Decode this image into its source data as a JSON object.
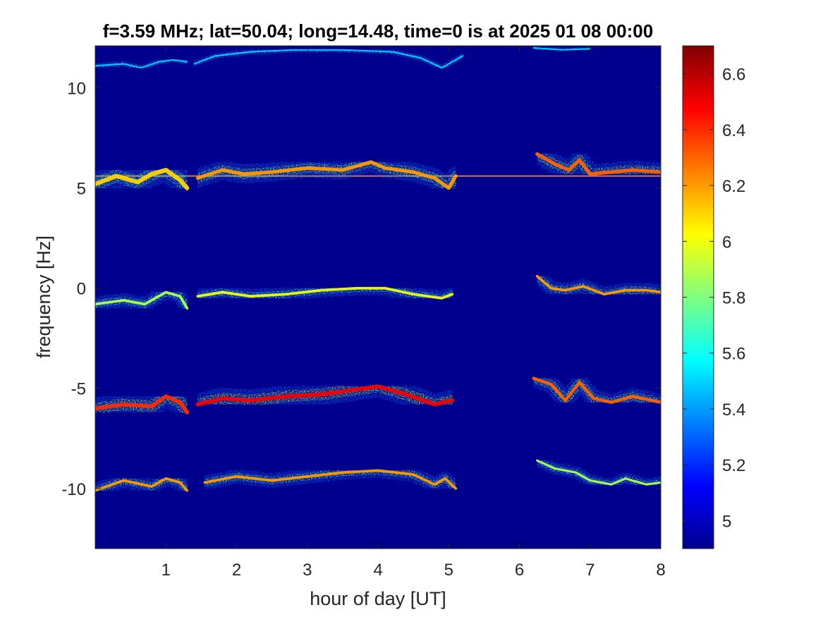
{
  "chart_data": {
    "type": "heatmap",
    "title": "f=3.59 MHz;  lat=50.04; long=14.48, time=0 is at 2025 01 08 00:00",
    "xlabel": "hour of day [UT]",
    "ylabel": "frequency [Hz]",
    "xlim": [
      0,
      8
    ],
    "ylim": [
      -13,
      12.1
    ],
    "xticks": [
      1,
      2,
      3,
      4,
      5,
      6,
      7,
      8
    ],
    "yticks": [
      10,
      5,
      0,
      -5,
      -10
    ],
    "colormap": "jet",
    "background_color": "#00008f",
    "colorbar": {
      "range": [
        4.9,
        6.7
      ],
      "ticks": [
        5,
        5.2,
        5.4,
        5.6,
        5.8,
        6,
        6.2,
        6.4,
        6.6
      ]
    },
    "constant_line": {
      "y": 5.6,
      "x": [
        0,
        8
      ]
    },
    "traces": [
      {
        "level": 6.1,
        "spread": 0.5,
        "points": [
          [
            0,
            5.2
          ],
          [
            0.3,
            5.6
          ],
          [
            0.6,
            5.3
          ],
          [
            0.8,
            5.7
          ],
          [
            1.0,
            5.9
          ],
          [
            1.2,
            5.4
          ],
          [
            1.3,
            5.0
          ]
        ]
      },
      {
        "level": 6.2,
        "spread": 0.4,
        "points": [
          [
            1.45,
            5.5
          ],
          [
            1.8,
            5.9
          ],
          [
            2.1,
            5.7
          ],
          [
            2.5,
            5.8
          ],
          [
            3.0,
            6.0
          ],
          [
            3.5,
            5.9
          ],
          [
            3.9,
            6.3
          ],
          [
            4.1,
            6.0
          ],
          [
            4.5,
            5.8
          ],
          [
            4.8,
            5.5
          ],
          [
            5.0,
            5.0
          ],
          [
            5.1,
            5.6
          ]
        ]
      },
      {
        "level": 6.3,
        "spread": 0.4,
        "points": [
          [
            6.25,
            6.7
          ],
          [
            6.5,
            6.2
          ],
          [
            6.7,
            5.9
          ],
          [
            6.85,
            6.4
          ],
          [
            7.0,
            5.7
          ],
          [
            7.3,
            5.8
          ],
          [
            7.6,
            5.9
          ],
          [
            8.0,
            5.8
          ]
        ]
      },
      {
        "level": 5.9,
        "spread": 0.3,
        "points": [
          [
            0,
            -0.8
          ],
          [
            0.4,
            -0.6
          ],
          [
            0.7,
            -0.8
          ],
          [
            1.0,
            -0.2
          ],
          [
            1.2,
            -0.4
          ],
          [
            1.3,
            -1.0
          ]
        ]
      },
      {
        "level": 6.0,
        "spread": 0.3,
        "points": [
          [
            1.45,
            -0.4
          ],
          [
            1.8,
            -0.2
          ],
          [
            2.2,
            -0.4
          ],
          [
            2.7,
            -0.3
          ],
          [
            3.2,
            -0.1
          ],
          [
            3.7,
            0.0
          ],
          [
            4.1,
            0.0
          ],
          [
            4.5,
            -0.3
          ],
          [
            4.9,
            -0.5
          ],
          [
            5.05,
            -0.3
          ]
        ]
      },
      {
        "level": 6.2,
        "spread": 0.3,
        "points": [
          [
            6.25,
            0.6
          ],
          [
            6.45,
            0.0
          ],
          [
            6.65,
            -0.1
          ],
          [
            6.9,
            0.1
          ],
          [
            7.2,
            -0.3
          ],
          [
            7.5,
            -0.1
          ],
          [
            7.8,
            -0.1
          ],
          [
            8.0,
            -0.2
          ]
        ]
      },
      {
        "level": 6.4,
        "spread": 0.45,
        "points": [
          [
            0,
            -6.0
          ],
          [
            0.4,
            -5.8
          ],
          [
            0.8,
            -5.9
          ],
          [
            1.0,
            -5.4
          ],
          [
            1.2,
            -5.7
          ],
          [
            1.3,
            -6.2
          ]
        ]
      },
      {
        "level": 6.5,
        "spread": 0.45,
        "points": [
          [
            1.45,
            -5.8
          ],
          [
            1.8,
            -5.5
          ],
          [
            2.2,
            -5.6
          ],
          [
            2.7,
            -5.4
          ],
          [
            3.2,
            -5.3
          ],
          [
            3.6,
            -5.1
          ],
          [
            4.0,
            -4.9
          ],
          [
            4.4,
            -5.3
          ],
          [
            4.8,
            -5.8
          ],
          [
            5.05,
            -5.6
          ]
        ]
      },
      {
        "level": 6.3,
        "spread": 0.35,
        "points": [
          [
            6.2,
            -4.5
          ],
          [
            6.45,
            -4.8
          ],
          [
            6.65,
            -5.6
          ],
          [
            6.85,
            -4.7
          ],
          [
            7.05,
            -5.5
          ],
          [
            7.3,
            -5.7
          ],
          [
            7.6,
            -5.4
          ],
          [
            8.0,
            -5.7
          ]
        ]
      },
      {
        "level": 6.2,
        "spread": 0.3,
        "points": [
          [
            0,
            -10.1
          ],
          [
            0.4,
            -9.6
          ],
          [
            0.8,
            -9.9
          ],
          [
            1.0,
            -9.5
          ],
          [
            1.2,
            -9.7
          ],
          [
            1.3,
            -10.1
          ]
        ]
      },
      {
        "level": 6.2,
        "spread": 0.3,
        "points": [
          [
            1.55,
            -9.7
          ],
          [
            2.0,
            -9.4
          ],
          [
            2.5,
            -9.6
          ],
          [
            3.0,
            -9.4
          ],
          [
            3.5,
            -9.2
          ],
          [
            4.0,
            -9.1
          ],
          [
            4.5,
            -9.3
          ],
          [
            4.8,
            -9.8
          ],
          [
            4.95,
            -9.5
          ],
          [
            5.1,
            -10.0
          ]
        ]
      },
      {
        "level": 5.9,
        "spread": 0.25,
        "points": [
          [
            6.25,
            -8.6
          ],
          [
            6.5,
            -9.0
          ],
          [
            6.8,
            -9.2
          ],
          [
            7.0,
            -9.6
          ],
          [
            7.3,
            -9.8
          ],
          [
            7.5,
            -9.5
          ],
          [
            7.8,
            -9.8
          ],
          [
            8.0,
            -9.7
          ]
        ]
      },
      {
        "level": 5.5,
        "spread": 0.12,
        "points": [
          [
            0,
            11.1
          ],
          [
            0.4,
            11.2
          ],
          [
            0.65,
            11.0
          ],
          [
            0.9,
            11.3
          ],
          [
            1.1,
            11.4
          ],
          [
            1.3,
            11.3
          ]
        ]
      },
      {
        "level": 5.5,
        "spread": 0.12,
        "points": [
          [
            1.4,
            11.2
          ],
          [
            1.7,
            11.6
          ],
          [
            2.2,
            11.8
          ],
          [
            2.8,
            11.9
          ],
          [
            3.5,
            11.9
          ],
          [
            4.2,
            11.8
          ],
          [
            4.6,
            11.5
          ],
          [
            4.9,
            11.0
          ],
          [
            5.2,
            11.6
          ]
        ]
      },
      {
        "level": 5.5,
        "spread": 0.1,
        "points": [
          [
            6.2,
            12.0
          ],
          [
            6.6,
            11.9
          ],
          [
            7.0,
            11.95
          ]
        ]
      }
    ]
  }
}
